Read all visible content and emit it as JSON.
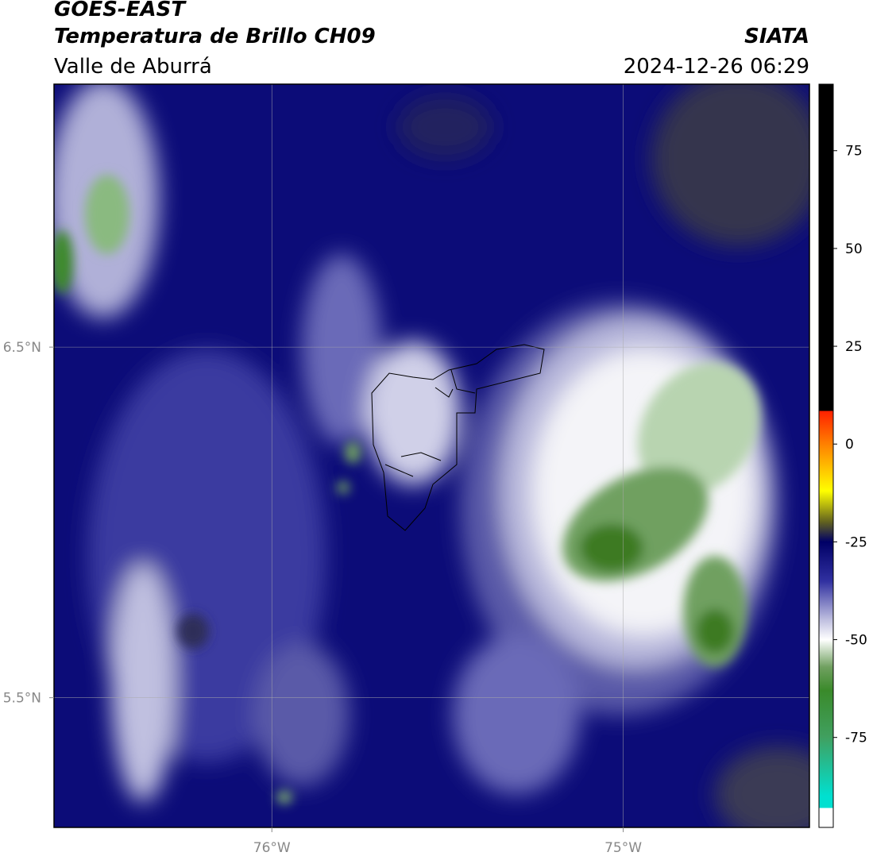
{
  "header": {
    "title": "GOES-EAST",
    "subtitle": "Temperatura de Brillo CH09",
    "region": "Valle de Aburrá",
    "source": "SIATA",
    "datetime": "2024-12-26 06:29"
  },
  "map": {
    "xlim": [
      -76.62,
      -74.47
    ],
    "ylim": [
      5.13,
      7.25
    ],
    "xticks": [
      {
        "value": -76,
        "label": "76°W"
      },
      {
        "value": -75,
        "label": "75°W"
      }
    ],
    "yticks": [
      {
        "value": 6.5,
        "label": "6.5°N"
      },
      {
        "value": 5.5,
        "label": "5.5°N"
      }
    ],
    "grid": true
  },
  "colorbar": {
    "lim": [
      -98,
      92
    ],
    "ticks": [
      75,
      50,
      25,
      0,
      -25,
      -50,
      -75
    ],
    "stops": [
      {
        "value": 92,
        "color": "#000000"
      },
      {
        "value": 8.5,
        "color": "#000000"
      },
      {
        "value": 8.5,
        "color": "#ff2000"
      },
      {
        "value": 0,
        "color": "#ff8000"
      },
      {
        "value": -12,
        "color": "#ffff00"
      },
      {
        "value": -20,
        "color": "#606020"
      },
      {
        "value": -25,
        "color": "#000066"
      },
      {
        "value": -35,
        "color": "#3030a0"
      },
      {
        "value": -45,
        "color": "#c0c0e0"
      },
      {
        "value": -50,
        "color": "#ffffff"
      },
      {
        "value": -57,
        "color": "#70a060"
      },
      {
        "value": -63,
        "color": "#3a8a2a"
      },
      {
        "value": -75,
        "color": "#40a060"
      },
      {
        "value": -90,
        "color": "#00e0d0"
      },
      {
        "value": -93,
        "color": "#00e0d0"
      },
      {
        "value": -93,
        "color": "#ffffff"
      },
      {
        "value": -98,
        "color": "#ffffff"
      }
    ]
  }
}
